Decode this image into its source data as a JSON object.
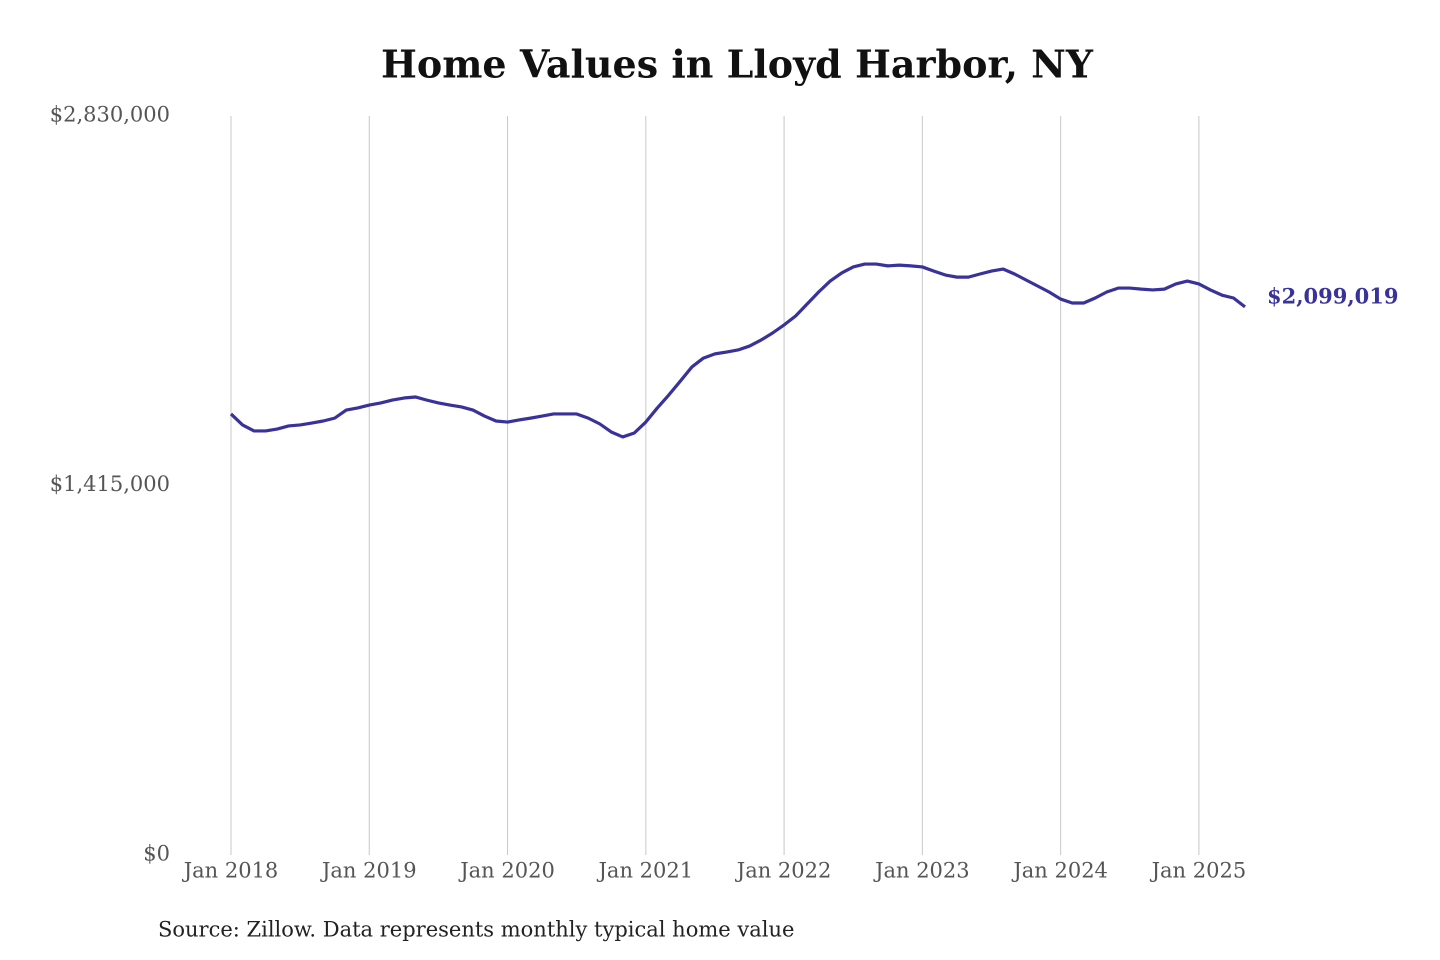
{
  "chart_data": {
    "type": "line",
    "title": "Home Values in Lloyd Harbor, NY",
    "source": "Source: Zillow. Data represents monthly typical home value",
    "color": "#38329a",
    "x": [
      "2018-01",
      "2018-02",
      "2018-03",
      "2018-04",
      "2018-05",
      "2018-06",
      "2018-07",
      "2018-08",
      "2018-09",
      "2018-10",
      "2018-11",
      "2018-12",
      "2019-01",
      "2019-02",
      "2019-03",
      "2019-04",
      "2019-05",
      "2019-06",
      "2019-07",
      "2019-08",
      "2019-09",
      "2019-10",
      "2019-11",
      "2019-12",
      "2020-01",
      "2020-02",
      "2020-03",
      "2020-04",
      "2020-05",
      "2020-06",
      "2020-07",
      "2020-08",
      "2020-09",
      "2020-10",
      "2020-11",
      "2020-12",
      "2021-01",
      "2021-02",
      "2021-03",
      "2021-04",
      "2021-05",
      "2021-06",
      "2021-07",
      "2021-08",
      "2021-09",
      "2021-10",
      "2021-11",
      "2021-12",
      "2022-01",
      "2022-02",
      "2022-03",
      "2022-04",
      "2022-05",
      "2022-06",
      "2022-07",
      "2022-08",
      "2022-09",
      "2022-10",
      "2022-11",
      "2022-12",
      "2023-01",
      "2023-02",
      "2023-03",
      "2023-04",
      "2023-05",
      "2023-06",
      "2023-07",
      "2023-08",
      "2023-09",
      "2023-10",
      "2023-11",
      "2023-12",
      "2024-01",
      "2024-02",
      "2024-03",
      "2024-04",
      "2024-05",
      "2024-06",
      "2024-07",
      "2024-08",
      "2024-09",
      "2024-10",
      "2024-11",
      "2024-12",
      "2025-01",
      "2025-02",
      "2025-03",
      "2025-04",
      "2025-05"
    ],
    "values": [
      1689000,
      1647000,
      1624000,
      1624000,
      1631000,
      1643000,
      1647000,
      1654000,
      1662000,
      1673000,
      1704000,
      1712000,
      1723000,
      1731000,
      1742000,
      1750000,
      1754000,
      1742000,
      1731000,
      1723000,
      1716000,
      1704000,
      1681000,
      1662000,
      1658000,
      1666000,
      1673000,
      1681000,
      1689000,
      1689000,
      1689000,
      1673000,
      1651000,
      1620000,
      1601000,
      1616000,
      1658000,
      1712000,
      1762000,
      1815000,
      1869000,
      1903000,
      1919000,
      1926000,
      1934000,
      1949000,
      1972000,
      1999000,
      2030000,
      2064000,
      2110000,
      2156000,
      2198000,
      2229000,
      2252000,
      2263000,
      2263000,
      2256000,
      2259000,
      2256000,
      2252000,
      2236000,
      2221000,
      2213000,
      2213000,
      2225000,
      2236000,
      2244000,
      2225000,
      2202000,
      2179000,
      2156000,
      2129000,
      2114000,
      2114000,
      2133000,
      2156000,
      2171000,
      2171000,
      2167000,
      2164000,
      2167000,
      2187000,
      2198000,
      2187000,
      2164000,
      2144000,
      2133000,
      2099019
    ],
    "value_labels": [
      null,
      null,
      null,
      null,
      null,
      null,
      null,
      null,
      null,
      null,
      null,
      null,
      null,
      null,
      null,
      null,
      null,
      null,
      null,
      null,
      null,
      null,
      null,
      null,
      null,
      null,
      null,
      null,
      null,
      null,
      null,
      null,
      null,
      null,
      null,
      null,
      null,
      null,
      null,
      null,
      null,
      null,
      null,
      null,
      null,
      null,
      null,
      null,
      null,
      null,
      null,
      null,
      null,
      null,
      null,
      null,
      null,
      null,
      null,
      null,
      null,
      null,
      null,
      null,
      null,
      null,
      null,
      null,
      null,
      null,
      null,
      null,
      null,
      null,
      null,
      null,
      null,
      null,
      null,
      null,
      null,
      null,
      null,
      null,
      null,
      null,
      null,
      null,
      "$2,099,019"
    ],
    "ylim": [
      0,
      2830000
    ],
    "yticks": [
      {
        "value": 0,
        "label": "$0"
      },
      {
        "value": 1415000,
        "label": "$1,415,000"
      },
      {
        "value": 2830000,
        "label": "$2,830,000"
      }
    ],
    "xticks": [
      {
        "value": "2018-01",
        "label": "Jan 2018"
      },
      {
        "value": "2019-01",
        "label": "Jan 2019"
      },
      {
        "value": "2020-01",
        "label": "Jan 2020"
      },
      {
        "value": "2021-01",
        "label": "Jan 2021"
      },
      {
        "value": "2022-01",
        "label": "Jan 2022"
      },
      {
        "value": "2023-01",
        "label": "Jan 2023"
      },
      {
        "value": "2024-01",
        "label": "Jan 2024"
      },
      {
        "value": "2025-01",
        "label": "Jan 2025"
      }
    ],
    "grid": "x"
  }
}
